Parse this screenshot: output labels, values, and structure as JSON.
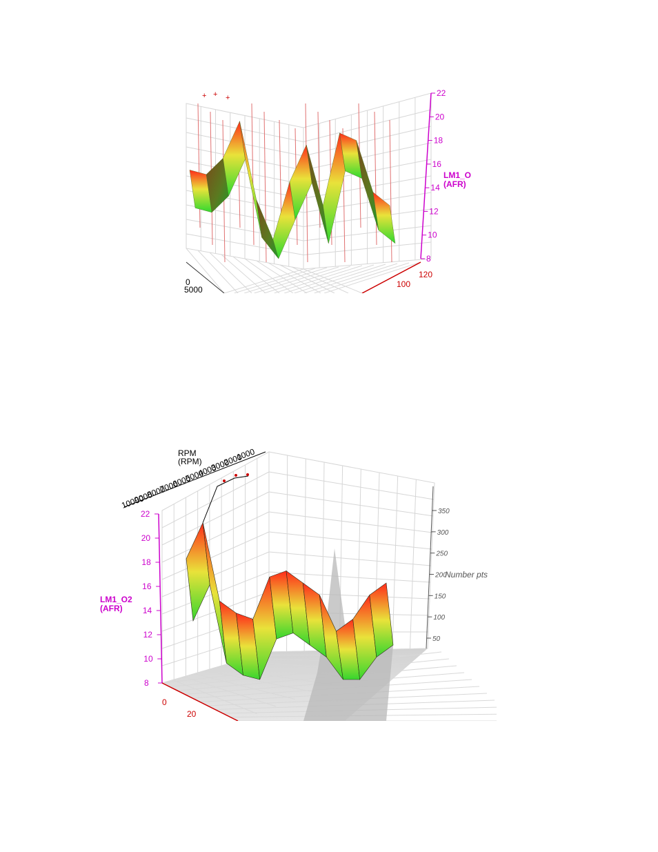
{
  "chart_data": [
    {
      "type": "surface",
      "z_axis": {
        "label_line1": "LM1_O",
        "label_line2": "(AFR)",
        "ticks": [
          "22",
          "20",
          "18",
          "16",
          "14",
          "12",
          "10",
          "8"
        ],
        "range": [
          8,
          22
        ]
      },
      "x_axis": {
        "ticks": [
          "120",
          "100"
        ]
      },
      "y_axis": {
        "ticks": [
          "0",
          "5000"
        ]
      },
      "surface_profile": [
        15.5,
        16,
        16.5,
        20.5,
        13,
        10.5,
        14.5,
        18.5,
        12.5,
        19.5,
        18,
        14.5,
        12.5
      ],
      "colors": {
        "high": "#ff2020",
        "mid": "#e8e830",
        "low": "#30e030",
        "axis": "#cc00cc",
        "axis2": "#cc0000"
      }
    },
    {
      "type": "surface",
      "z_axis": {
        "label_line1": "LM1_O2",
        "label_line2": "(AFR)",
        "ticks": [
          "22",
          "20",
          "18",
          "16",
          "14",
          "12",
          "10",
          "8"
        ],
        "range": [
          8,
          22
        ]
      },
      "x_axis": {
        "ticks": [
          "0",
          "20"
        ]
      },
      "rpm_axis": {
        "label_line1": "RPM",
        "label_line2": "(RPM)",
        "ticks": [
          "10000",
          "9000",
          "8000",
          "7000",
          "6000",
          "5000",
          "4000",
          "3000",
          "2000",
          "1000"
        ]
      },
      "count_axis": {
        "label": "Number pts",
        "ticks": [
          "350",
          "300",
          "250",
          "200",
          "150",
          "100",
          "50"
        ]
      },
      "surface_profile": [
        18,
        21,
        14.5,
        13.5,
        13,
        16.5,
        17,
        16,
        15,
        12,
        13,
        15,
        16
      ],
      "colors": {
        "high": "#ff2020",
        "mid": "#e8e830",
        "low": "#30e030",
        "axis": "#cc00cc",
        "axis2": "#cc0000"
      }
    }
  ]
}
